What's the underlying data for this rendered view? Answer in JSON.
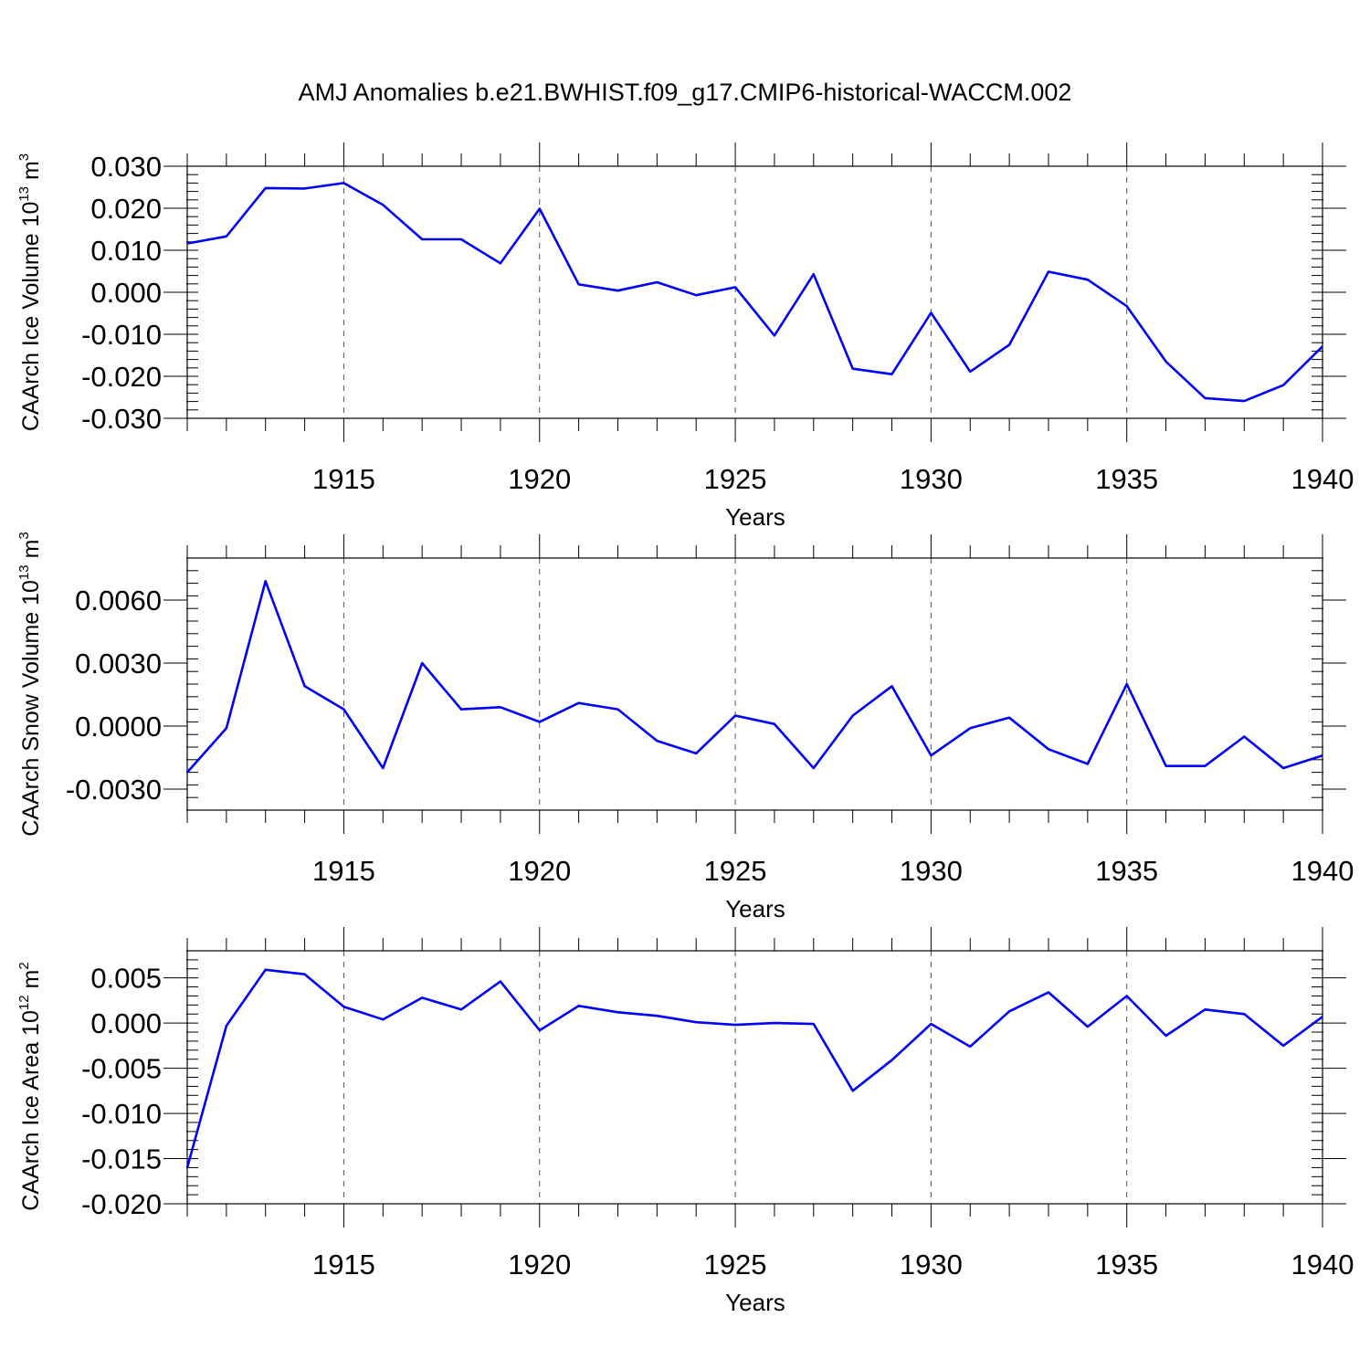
{
  "figure": {
    "title": "AMJ Anomalies b.e21.BWHIST.f09_g17.CMIP6-historical-WACCM.002"
  },
  "chart_data": [
    {
      "type": "line",
      "title": "",
      "xlabel": "Years",
      "ylabel": {
        "main": "CAArch Ice Volume 10",
        "exponent": "13",
        "unit": " m",
        "unit_exponent": "3"
      },
      "xlim": [
        1911,
        1940
      ],
      "ylim": [
        -0.03,
        0.03
      ],
      "xticks": [
        1915,
        1920,
        1925,
        1930,
        1935,
        1940
      ],
      "yticks": [
        0.03,
        0.02,
        0.01,
        0.0,
        -0.01,
        -0.02,
        -0.03
      ],
      "ytick_labels": [
        "0.030",
        "0.020",
        "0.010",
        "0.000",
        "-0.010",
        "-0.020",
        "-0.030"
      ],
      "grid": "vertical dashed at major x ticks",
      "line_color": "#0000ff",
      "series": [
        {
          "x": [
            1911,
            1912,
            1913,
            1914,
            1915,
            1916,
            1917,
            1918,
            1919,
            1920,
            1921,
            1922,
            1923,
            1924,
            1925,
            1926,
            1927,
            1928,
            1929,
            1930,
            1931,
            1932,
            1933,
            1934,
            1935,
            1936,
            1937,
            1938,
            1939,
            1940
          ],
          "values": [
            0.0116,
            0.0133,
            0.0248,
            0.0247,
            0.026,
            0.0208,
            0.0126,
            0.0126,
            0.0069,
            0.0199,
            0.0019,
            0.0004,
            0.0024,
            -0.0007,
            0.0012,
            -0.0103,
            0.0043,
            -0.0182,
            -0.0195,
            -0.0049,
            -0.0189,
            -0.0125,
            0.0049,
            0.003,
            -0.0033,
            -0.0165,
            -0.0252,
            -0.0259,
            -0.0221,
            -0.0129
          ]
        }
      ]
    },
    {
      "type": "line",
      "title": "",
      "xlabel": "Years",
      "ylabel": {
        "main": "CAArch Snow Volume 10",
        "exponent": "13",
        "unit": " m",
        "unit_exponent": "3"
      },
      "xlim": [
        1911,
        1940
      ],
      "ylim": [
        -0.004,
        0.008
      ],
      "xticks": [
        1915,
        1920,
        1925,
        1930,
        1935,
        1940
      ],
      "yticks": [
        0.006,
        0.003,
        0.0,
        -0.003
      ],
      "ytick_labels": [
        "0.0060",
        "0.0030",
        "0.0000",
        "-0.0030"
      ],
      "grid": "vertical dashed at major x ticks",
      "line_color": "#0000ff",
      "series": [
        {
          "x": [
            1911,
            1912,
            1913,
            1914,
            1915,
            1916,
            1917,
            1918,
            1919,
            1920,
            1921,
            1922,
            1923,
            1924,
            1925,
            1926,
            1927,
            1928,
            1929,
            1930,
            1931,
            1932,
            1933,
            1934,
            1935,
            1936,
            1937,
            1938,
            1939,
            1940
          ],
          "values": [
            -0.0022,
            -0.0001,
            0.0069,
            0.0019,
            0.0008,
            -0.002,
            0.003,
            0.0008,
            0.0009,
            0.0002,
            0.0011,
            0.0008,
            -0.0007,
            -0.0013,
            0.0005,
            0.0001,
            -0.002,
            0.0005,
            0.0019,
            -0.0014,
            -0.0001,
            0.0004,
            -0.0011,
            -0.0018,
            0.002,
            -0.0019,
            -0.0019,
            -0.0005,
            -0.002,
            -0.0014
          ]
        }
      ]
    },
    {
      "type": "line",
      "title": "",
      "xlabel": "Years",
      "ylabel": {
        "main": "CAArch Ice Area 10",
        "exponent": "12",
        "unit": " m",
        "unit_exponent": "2"
      },
      "xlim": [
        1911,
        1940
      ],
      "ylim": [
        -0.02,
        0.008
      ],
      "xticks": [
        1915,
        1920,
        1925,
        1930,
        1935,
        1940
      ],
      "yticks": [
        0.005,
        0.0,
        -0.005,
        -0.01,
        -0.015,
        -0.02
      ],
      "ytick_labels": [
        "0.005",
        "0.000",
        "-0.005",
        "-0.010",
        "-0.015",
        "-0.020"
      ],
      "grid": "vertical dashed at major x ticks",
      "line_color": "#0000ff",
      "series": [
        {
          "x": [
            1911,
            1912,
            1913,
            1914,
            1915,
            1916,
            1917,
            1918,
            1919,
            1920,
            1921,
            1922,
            1923,
            1924,
            1925,
            1926,
            1927,
            1928,
            1929,
            1930,
            1931,
            1932,
            1933,
            1934,
            1935,
            1936,
            1937,
            1938,
            1939,
            1940
          ],
          "values": [
            -0.016,
            -0.0003,
            0.0059,
            0.0054,
            0.0018,
            0.0004,
            0.0028,
            0.0015,
            0.0046,
            -0.0008,
            0.0019,
            0.0012,
            0.0008,
            0.0001,
            -0.0002,
            0.0,
            -0.0001,
            -0.0075,
            -0.0041,
            -0.0001,
            -0.0026,
            0.0013,
            0.0034,
            -0.0004,
            0.003,
            -0.0014,
            0.0015,
            0.001,
            -0.0025,
            0.0007
          ]
        }
      ]
    }
  ]
}
